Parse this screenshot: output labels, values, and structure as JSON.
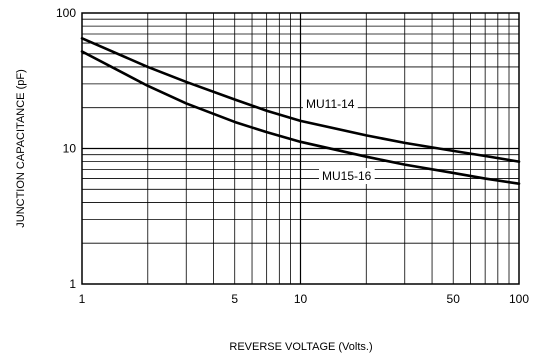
{
  "chart_data": {
    "type": "line",
    "title": "",
    "xlabel": "REVERSE VOLTAGE (Volts.)",
    "ylabel": "JUNCTION CAPACITANCE (pF)",
    "x_scale": "log",
    "y_scale": "log",
    "xlim": [
      1,
      100
    ],
    "ylim": [
      1,
      100
    ],
    "grid": true,
    "x_tick_labels": [
      {
        "value": 1,
        "label": "1"
      },
      {
        "value": 5,
        "label": "5"
      },
      {
        "value": 10,
        "label": "10"
      },
      {
        "value": 50,
        "label": "50"
      },
      {
        "value": 100,
        "label": "100"
      }
    ],
    "y_tick_labels": [
      {
        "value": 1,
        "label": "1"
      },
      {
        "value": 10,
        "label": "10"
      },
      {
        "value": 100,
        "label": "100"
      }
    ],
    "series": [
      {
        "name": "MU11-14",
        "x": [
          1,
          2,
          3,
          5,
          7,
          10,
          20,
          30,
          50,
          70,
          100
        ],
        "y": [
          65,
          40,
          31,
          23,
          19,
          16,
          12.5,
          11,
          9.6,
          8.8,
          8.0
        ]
      },
      {
        "name": "MU15-16",
        "x": [
          1,
          2,
          3,
          5,
          7,
          10,
          20,
          30,
          50,
          70,
          100
        ],
        "y": [
          52,
          29,
          21.5,
          15.7,
          13.2,
          11.2,
          8.7,
          7.6,
          6.6,
          6.0,
          5.5
        ]
      }
    ]
  }
}
